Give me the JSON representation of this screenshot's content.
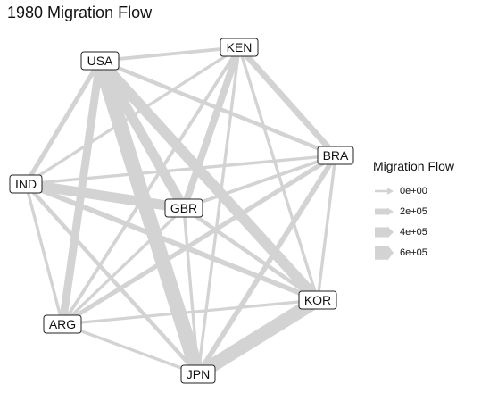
{
  "title": "1980 Migration Flow",
  "nodes": [
    {
      "id": "USA"
    },
    {
      "id": "KEN"
    },
    {
      "id": "BRA"
    },
    {
      "id": "IND"
    },
    {
      "id": "GBR"
    },
    {
      "id": "KOR"
    },
    {
      "id": "ARG"
    },
    {
      "id": "JPN"
    }
  ],
  "edges": [
    {
      "from": "USA",
      "to": "JPN",
      "flow": 650000
    },
    {
      "from": "USA",
      "to": "KOR",
      "flow": 450000
    },
    {
      "from": "USA",
      "to": "GBR",
      "flow": 400000
    },
    {
      "from": "USA",
      "to": "ARG",
      "flow": 300000
    },
    {
      "from": "USA",
      "to": "IND",
      "flow": 120000
    },
    {
      "from": "USA",
      "to": "KEN",
      "flow": 60000
    },
    {
      "from": "USA",
      "to": "BRA",
      "flow": 90000
    },
    {
      "from": "KOR",
      "to": "JPN",
      "flow": 600000
    },
    {
      "from": "IND",
      "to": "GBR",
      "flow": 400000
    },
    {
      "from": "KEN",
      "to": "GBR",
      "flow": 250000
    },
    {
      "from": "BRA",
      "to": "JPN",
      "flow": 150000
    },
    {
      "from": "BRA",
      "to": "ARG",
      "flow": 120000
    },
    {
      "from": "KEN",
      "to": "BRA",
      "flow": 200000
    },
    {
      "from": "IND",
      "to": "KOR",
      "flow": 150000
    },
    {
      "from": "IND",
      "to": "JPN",
      "flow": 90000
    },
    {
      "from": "GBR",
      "to": "KOR",
      "flow": 90000
    },
    {
      "from": "KEN",
      "to": "ARG",
      "flow": 60000
    },
    {
      "from": "KEN",
      "to": "IND",
      "flow": 40000
    },
    {
      "from": "KEN",
      "to": "JPN",
      "flow": 40000
    },
    {
      "from": "KEN",
      "to": "KOR",
      "flow": 40000
    },
    {
      "from": "BRA",
      "to": "IND",
      "flow": 40000
    },
    {
      "from": "BRA",
      "to": "GBR",
      "flow": 60000
    },
    {
      "from": "BRA",
      "to": "KOR",
      "flow": 40000
    },
    {
      "from": "IND",
      "to": "ARG",
      "flow": 40000
    },
    {
      "from": "GBR",
      "to": "ARG",
      "flow": 40000
    },
    {
      "from": "GBR",
      "to": "JPN",
      "flow": 40000
    },
    {
      "from": "ARG",
      "to": "KOR",
      "flow": 30000
    },
    {
      "from": "ARG",
      "to": "JPN",
      "flow": 40000
    }
  ],
  "legend": {
    "title": "Migration Flow",
    "items": [
      {
        "label": "0e+00",
        "flow": 0
      },
      {
        "label": "2e+05",
        "flow": 200000
      },
      {
        "label": "4e+05",
        "flow": 400000
      },
      {
        "label": "6e+05",
        "flow": 600000
      }
    ]
  },
  "colors": {
    "edge": "#d3d3d3",
    "node_border": "#222222",
    "text": "#111111"
  }
}
